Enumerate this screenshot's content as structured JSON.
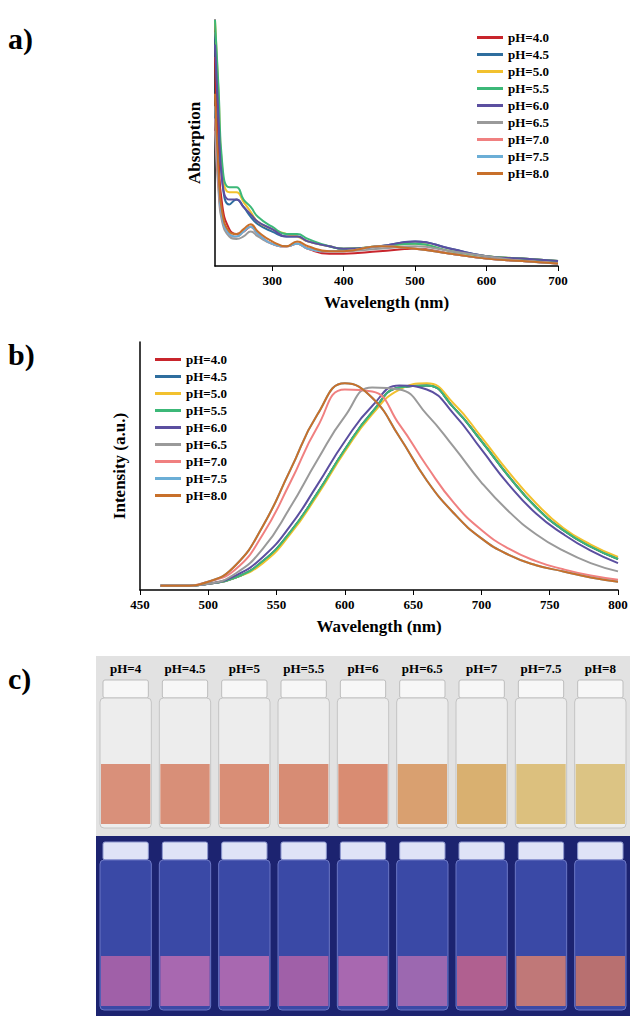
{
  "panel_letters": [
    "a)",
    "b)",
    "c)"
  ],
  "chart_data": [
    {
      "type": "line",
      "x_label": "Wavelength (nm)",
      "y_label": "Absorption",
      "xlim": [
        220,
        700
      ],
      "xticks": [
        300,
        400,
        500,
        600,
        700
      ],
      "ylim": [
        0,
        1
      ],
      "tick_labels": "x",
      "legend": "upper right",
      "x": [
        220,
        225,
        230,
        240,
        250,
        260,
        270,
        280,
        300,
        320,
        335,
        350,
        380,
        400,
        450,
        500,
        550,
        600,
        650,
        700
      ],
      "series": [
        {
          "name": "pH=4.0",
          "color": "#c8252c",
          "values": [
            0.85,
            0.45,
            0.25,
            0.15,
            0.13,
            0.14,
            0.16,
            0.13,
            0.09,
            0.08,
            0.09,
            0.07,
            0.05,
            0.05,
            0.06,
            0.07,
            0.05,
            0.03,
            0.02,
            0.01
          ]
        },
        {
          "name": "pH=4.5",
          "color": "#2e6e9e",
          "values": [
            0.95,
            0.6,
            0.35,
            0.25,
            0.27,
            0.24,
            0.2,
            0.17,
            0.14,
            0.12,
            0.12,
            0.1,
            0.08,
            0.07,
            0.08,
            0.1,
            0.07,
            0.04,
            0.03,
            0.02
          ]
        },
        {
          "name": "pH=5.0",
          "color": "#f2c12e",
          "values": [
            1.0,
            0.7,
            0.4,
            0.3,
            0.3,
            0.26,
            0.22,
            0.18,
            0.15,
            0.13,
            0.12,
            0.1,
            0.08,
            0.07,
            0.08,
            0.09,
            0.06,
            0.04,
            0.03,
            0.02
          ]
        },
        {
          "name": "pH=5.5",
          "color": "#3cb878",
          "values": [
            1.0,
            0.72,
            0.42,
            0.32,
            0.32,
            0.27,
            0.24,
            0.2,
            0.16,
            0.13,
            0.13,
            0.11,
            0.08,
            0.07,
            0.08,
            0.09,
            0.06,
            0.04,
            0.03,
            0.02
          ]
        },
        {
          "name": "pH=6.0",
          "color": "#5b4fa0",
          "values": [
            0.9,
            0.6,
            0.35,
            0.27,
            0.27,
            0.24,
            0.21,
            0.18,
            0.15,
            0.12,
            0.12,
            0.1,
            0.08,
            0.07,
            0.08,
            0.1,
            0.07,
            0.04,
            0.03,
            0.02
          ]
        },
        {
          "name": "pH=6.5",
          "color": "#9a9a9a",
          "values": [
            0.55,
            0.3,
            0.18,
            0.12,
            0.11,
            0.12,
            0.14,
            0.12,
            0.09,
            0.08,
            0.09,
            0.07,
            0.06,
            0.06,
            0.07,
            0.08,
            0.06,
            0.04,
            0.02,
            0.01
          ]
        },
        {
          "name": "pH=7.0",
          "color": "#f08080",
          "values": [
            0.6,
            0.32,
            0.2,
            0.13,
            0.12,
            0.14,
            0.16,
            0.13,
            0.09,
            0.08,
            0.09,
            0.07,
            0.06,
            0.06,
            0.08,
            0.07,
            0.05,
            0.03,
            0.02,
            0.01
          ]
        },
        {
          "name": "pH=7.5",
          "color": "#6baed6",
          "values": [
            0.65,
            0.35,
            0.2,
            0.13,
            0.12,
            0.14,
            0.16,
            0.13,
            0.09,
            0.08,
            0.09,
            0.07,
            0.06,
            0.06,
            0.08,
            0.07,
            0.05,
            0.03,
            0.02,
            0.01
          ]
        },
        {
          "name": "pH=8.0",
          "color": "#c8702a",
          "values": [
            0.7,
            0.38,
            0.22,
            0.14,
            0.13,
            0.15,
            0.17,
            0.14,
            0.1,
            0.08,
            0.1,
            0.08,
            0.06,
            0.06,
            0.08,
            0.07,
            0.05,
            0.03,
            0.02,
            0.01
          ]
        }
      ]
    },
    {
      "type": "line",
      "x_label": "Wavelength (nm)",
      "y_label": "Intensity (a.u.)",
      "xlim": [
        450,
        800
      ],
      "xticks": [
        450,
        500,
        550,
        600,
        650,
        700,
        750,
        800
      ],
      "ylim": [
        0,
        1.2
      ],
      "tick_labels": "x",
      "legend": "upper left",
      "x": [
        465,
        480,
        500,
        520,
        540,
        560,
        580,
        600,
        620,
        640,
        660,
        680,
        700,
        720,
        740,
        760,
        780,
        800
      ],
      "series": [
        {
          "name": "pH=4.0",
          "color": "#c8252c",
          "values": [
            0.02,
            0.02,
            0.03,
            0.06,
            0.14,
            0.28,
            0.47,
            0.68,
            0.86,
            0.98,
            0.99,
            0.88,
            0.72,
            0.55,
            0.4,
            0.29,
            0.21,
            0.15
          ]
        },
        {
          "name": "pH=4.5",
          "color": "#2e6e9e",
          "values": [
            0.02,
            0.02,
            0.03,
            0.06,
            0.14,
            0.28,
            0.47,
            0.68,
            0.86,
            0.98,
            0.99,
            0.88,
            0.72,
            0.55,
            0.4,
            0.29,
            0.21,
            0.15
          ]
        },
        {
          "name": "pH=5.0",
          "color": "#f2c12e",
          "values": [
            0.02,
            0.02,
            0.03,
            0.06,
            0.13,
            0.27,
            0.46,
            0.67,
            0.85,
            0.97,
            1.0,
            0.9,
            0.74,
            0.57,
            0.42,
            0.3,
            0.22,
            0.16
          ]
        },
        {
          "name": "pH=5.5",
          "color": "#3cb878",
          "values": [
            0.02,
            0.02,
            0.03,
            0.06,
            0.14,
            0.28,
            0.47,
            0.68,
            0.86,
            0.98,
            0.99,
            0.88,
            0.72,
            0.55,
            0.4,
            0.29,
            0.21,
            0.15
          ]
        },
        {
          "name": "pH=6.0",
          "color": "#5b4fa0",
          "values": [
            0.02,
            0.02,
            0.03,
            0.07,
            0.16,
            0.31,
            0.51,
            0.72,
            0.89,
            0.99,
            0.97,
            0.85,
            0.68,
            0.51,
            0.37,
            0.27,
            0.19,
            0.13
          ]
        },
        {
          "name": "pH=6.5",
          "color": "#9a9a9a",
          "values": [
            0.02,
            0.02,
            0.03,
            0.08,
            0.2,
            0.4,
            0.63,
            0.84,
            0.98,
            0.97,
            0.85,
            0.69,
            0.52,
            0.38,
            0.27,
            0.19,
            0.13,
            0.09
          ]
        },
        {
          "name": "pH=7.0",
          "color": "#f08080",
          "values": [
            0.02,
            0.02,
            0.04,
            0.1,
            0.27,
            0.52,
            0.79,
            0.97,
            0.96,
            0.8,
            0.6,
            0.42,
            0.29,
            0.2,
            0.14,
            0.1,
            0.07,
            0.05
          ]
        },
        {
          "name": "pH=7.5",
          "color": "#6baed6",
          "values": [
            0.02,
            0.02,
            0.04,
            0.12,
            0.31,
            0.58,
            0.85,
            1.0,
            0.93,
            0.74,
            0.53,
            0.37,
            0.25,
            0.17,
            0.12,
            0.09,
            0.06,
            0.04
          ]
        },
        {
          "name": "pH=8.0",
          "color": "#c8702a",
          "values": [
            0.02,
            0.02,
            0.04,
            0.12,
            0.31,
            0.58,
            0.85,
            1.0,
            0.93,
            0.74,
            0.53,
            0.37,
            0.25,
            0.17,
            0.12,
            0.09,
            0.06,
            0.04
          ]
        }
      ]
    }
  ],
  "photo_panel": {
    "labels": [
      "pH=4",
      "pH=4.5",
      "pH=5",
      "pH=5.5",
      "pH=6",
      "pH=6.5",
      "pH=7",
      "pH=7.5",
      "pH=8"
    ]
  }
}
